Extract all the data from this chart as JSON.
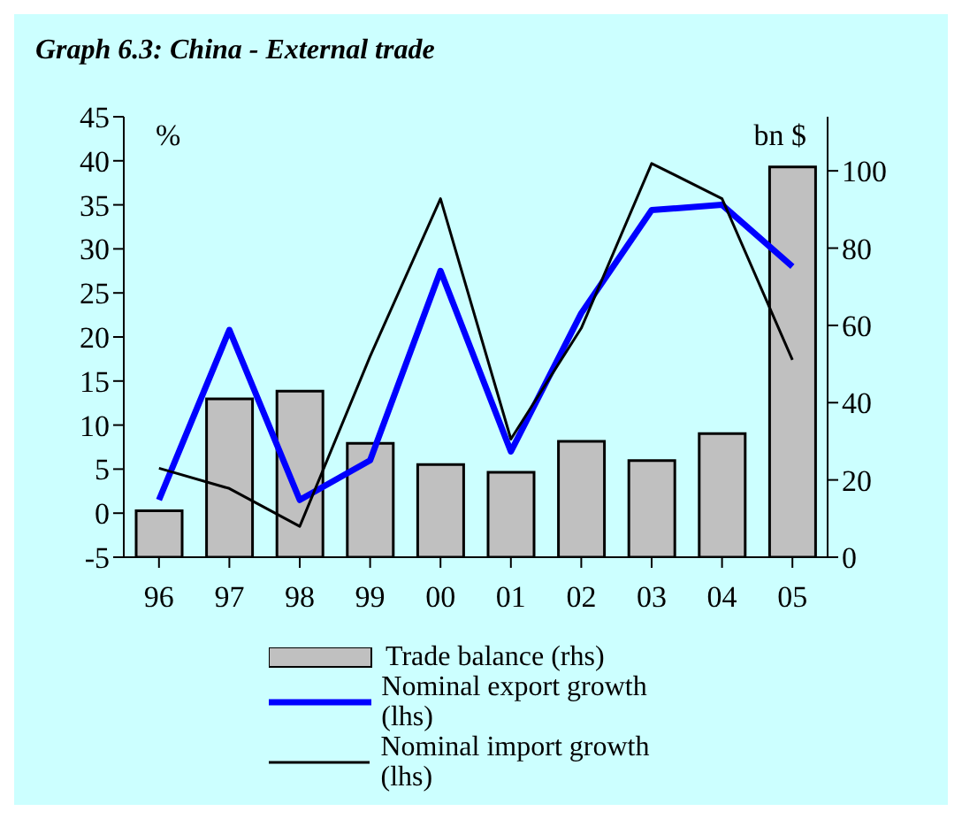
{
  "chart_data": {
    "type": "bar",
    "title": "Graph 6.3: China - External trade",
    "categories": [
      "96",
      "97",
      "98",
      "99",
      "00",
      "01",
      "02",
      "03",
      "04",
      "05"
    ],
    "series": [
      {
        "name": "Trade balance (rhs)",
        "axis": "y2",
        "color": "#c0c0c0",
        "values": [
          12,
          41,
          43,
          29.5,
          24,
          22,
          30,
          25,
          32,
          101
        ]
      },
      {
        "name": "Nominal export growth (lhs)",
        "type": "line",
        "color": "#0000ff",
        "values": [
          1.5,
          20.8,
          1.5,
          6,
          27.5,
          7,
          22.7,
          34.4,
          35,
          28
        ]
      },
      {
        "name": "Nominal import growth (lhs)",
        "type": "line",
        "color": "#000000",
        "values": [
          5.1,
          2.8,
          -1.5,
          17.8,
          35.7,
          8.4,
          21,
          39.7,
          35.7,
          17.4
        ]
      }
    ],
    "ylabel": "%",
    "y2label": "bn $",
    "ylim": [
      -5,
      45
    ],
    "yticks": [
      -5,
      0,
      5,
      10,
      15,
      20,
      25,
      30,
      35,
      40,
      45
    ],
    "y2lim": [
      0,
      114
    ],
    "y2ticks": [
      0,
      20,
      40,
      60,
      80,
      100
    ],
    "grid": false,
    "legend": "bottom",
    "marker": "none",
    "line_style": "solid"
  }
}
